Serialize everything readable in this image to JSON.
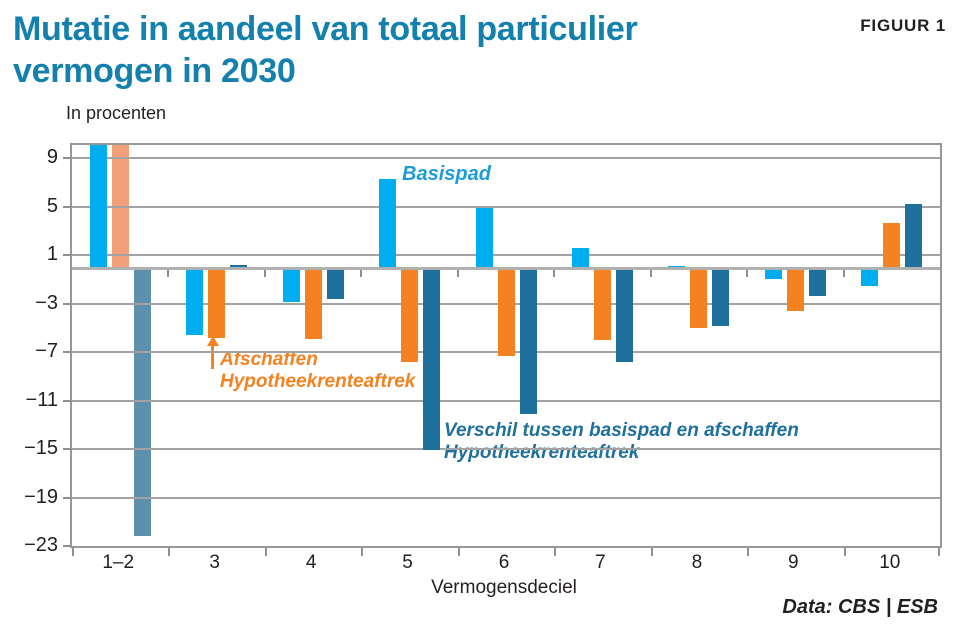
{
  "figure_label": "FIGUUR 1",
  "title_lines": [
    "Mutatie in aandeel van totaal particulier",
    "vermogen in 2030"
  ],
  "subtitle": "In procenten",
  "xlabel": "Vermogensdeciel",
  "source": "Data: CBS | ESB",
  "colors": {
    "title": "#1380AD",
    "text": "#231F20",
    "grid": "#A3A3A3",
    "zero_line": "#B0B0B0",
    "basispad": "#00AEEF",
    "basispad_label": "#1E9CD7",
    "afschaffen": "#F58220",
    "afschaffen_faded": "#F2A079",
    "verschil": "#20709E",
    "verschil_faded": "#5E90AB"
  },
  "chart_data": {
    "type": "bar",
    "title": "Mutatie in aandeel van totaal particulier vermogen in 2030",
    "unit_label": "In procenten",
    "xlabel": "Vermogensdeciel",
    "categories": [
      "1–2",
      "3",
      "4",
      "5",
      "6",
      "7",
      "8",
      "9",
      "10"
    ],
    "series": [
      {
        "name": "Basispad",
        "color": "#00AEEF",
        "faded_color": "#7FD0F2",
        "values": [
          10.2,
          -5.6,
          -2.9,
          7.3,
          4.9,
          1.6,
          0.15,
          -1.0,
          -1.5
        ],
        "clipped_top": [
          true,
          false,
          false,
          false,
          false,
          false,
          false,
          false,
          false
        ],
        "faded": [
          false,
          false,
          false,
          false,
          false,
          false,
          false,
          false,
          false
        ]
      },
      {
        "name": "Afschaffen Hypotheekrenteaftrek",
        "color": "#F58220",
        "faded_color": "#F2A079",
        "values": [
          10.2,
          -5.8,
          -5.9,
          -7.8,
          -7.3,
          -6.0,
          -5.0,
          -3.6,
          3.7
        ],
        "clipped_top": [
          true,
          false,
          false,
          false,
          false,
          false,
          false,
          false,
          false
        ],
        "faded": [
          true,
          false,
          false,
          false,
          false,
          false,
          false,
          false,
          false
        ]
      },
      {
        "name": "Verschil tussen basispad en afschaffen Hypotheekrenteaftrek",
        "color": "#20709E",
        "faded_color": "#5E90AB",
        "values": [
          -22.2,
          0.2,
          -2.6,
          -15.1,
          -12.1,
          -7.8,
          -4.8,
          -2.4,
          5.2
        ],
        "clipped_top": [
          false,
          false,
          false,
          false,
          false,
          false,
          false,
          false,
          false
        ],
        "faded": [
          true,
          false,
          false,
          false,
          false,
          false,
          false,
          false,
          false
        ]
      }
    ],
    "yticks": [
      9,
      5,
      1,
      -3,
      -7,
      -11,
      -15,
      -19,
      -23
    ],
    "ylim": [
      -23,
      10.1
    ],
    "grid": true,
    "legend_position": "annotations-inside-plot",
    "annotations": {
      "basispad": "Basispad",
      "afschaffen": "Afschaffen\nHypotheekrenteaftrek",
      "verschil": "Verschil tussen basispad en afschaffen\nHypotheekrenteaftrek"
    }
  }
}
